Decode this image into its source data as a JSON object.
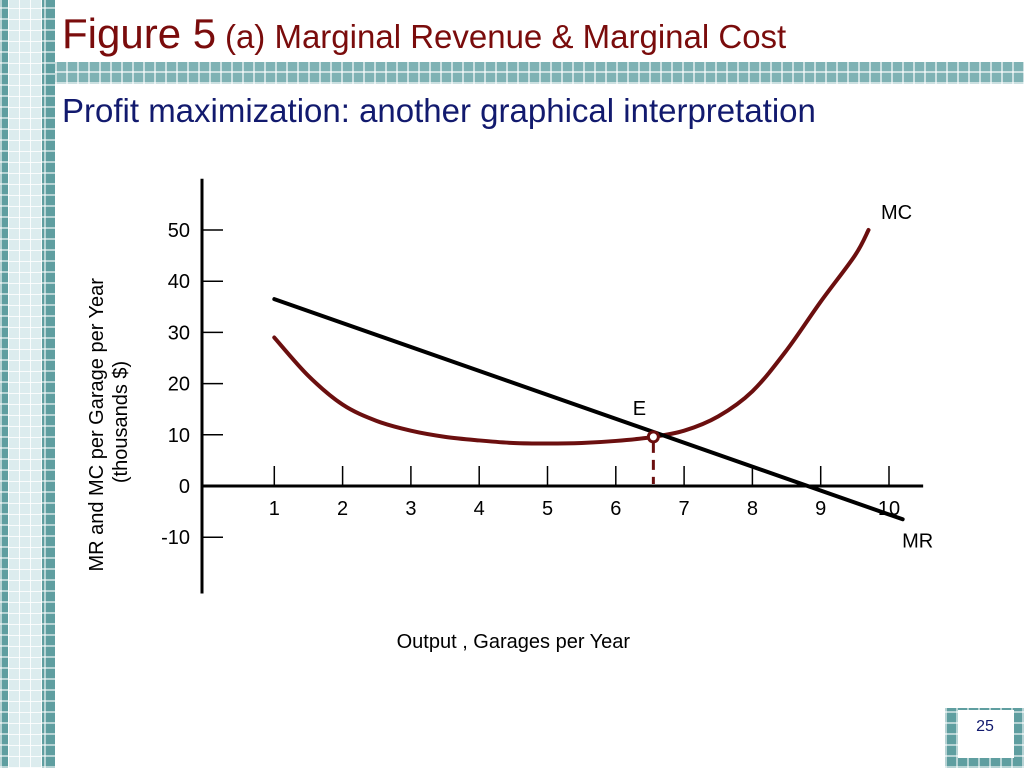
{
  "slide": {
    "title_main": "Figure 5",
    "title_sub": "(a) Marginal Revenue & Marginal Cost",
    "subtitle": "Profit maximization: another graphical interpretation",
    "page_number": "25"
  },
  "colors": {
    "title": "#7a0c0c",
    "subtitle": "#121a6e",
    "mc_curve": "#6b0f0f",
    "mr_line": "#000000",
    "teal_pattern": "#5f9ea0"
  },
  "chart_data": {
    "type": "line",
    "xlabel": "Output , Garages per Year",
    "ylabel": [
      "MR and MC per Garage per Year",
      "(thousands $)"
    ],
    "x_ticks": [
      1,
      2,
      3,
      4,
      5,
      6,
      7,
      8,
      9,
      10
    ],
    "y_ticks": [
      -10,
      0,
      10,
      20,
      30,
      40,
      50
    ],
    "xlim": [
      0,
      10.5
    ],
    "ylim": [
      -21,
      60
    ],
    "grid": false,
    "series": [
      {
        "name": "MC",
        "x": [
          1,
          1.5,
          2,
          2.5,
          3,
          3.5,
          4,
          4.5,
          5,
          5.5,
          6,
          6.5,
          7,
          7.5,
          8,
          8.5,
          9,
          9.5,
          9.7
        ],
        "y": [
          29,
          21.5,
          15.9,
          12.7,
          10.8,
          9.6,
          8.9,
          8.4,
          8.3,
          8.4,
          8.8,
          9.5,
          10.8,
          13.6,
          18.5,
          26.5,
          36,
          45,
          50
        ]
      },
      {
        "name": "MR",
        "x": [
          1,
          10.2
        ],
        "y": [
          36.5,
          -6.5
        ]
      }
    ],
    "annotations": [
      {
        "label": "E",
        "x": 6.55,
        "y": 9.6
      }
    ]
  }
}
